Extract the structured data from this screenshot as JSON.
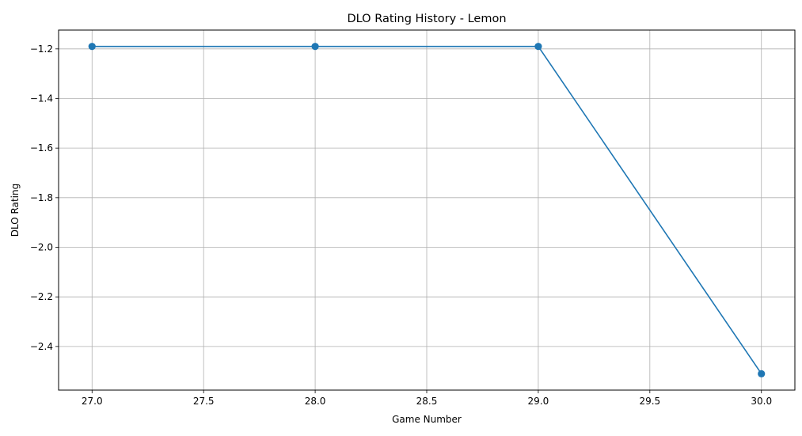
{
  "chart_data": {
    "type": "line",
    "title": "DLO Rating History - Lemon",
    "xlabel": "Game Number",
    "ylabel": "DLO Rating",
    "x": [
      27,
      28,
      29,
      30
    ],
    "series": [
      {
        "values": [
          -1.19,
          -1.19,
          -1.19,
          -2.51
        ],
        "color": "#1f77b4",
        "marker": "circle"
      }
    ],
    "xlim": [
      26.85,
      30.15
    ],
    "ylim": [
      -2.576,
      -1.124
    ],
    "xticks": [
      27.0,
      27.5,
      28.0,
      28.5,
      29.0,
      29.5,
      30.0
    ],
    "xtick_labels": [
      "27.0",
      "27.5",
      "28.0",
      "28.5",
      "29.0",
      "29.5",
      "30.0"
    ],
    "yticks": [
      -1.2,
      -1.4,
      -1.6,
      -1.8,
      -2.0,
      -2.2,
      -2.4
    ],
    "ytick_labels": [
      "−1.2",
      "−1.4",
      "−1.6",
      "−1.8",
      "−2.0",
      "−2.2",
      "−2.4"
    ],
    "grid": true,
    "grid_color": "#b0b0b0"
  }
}
